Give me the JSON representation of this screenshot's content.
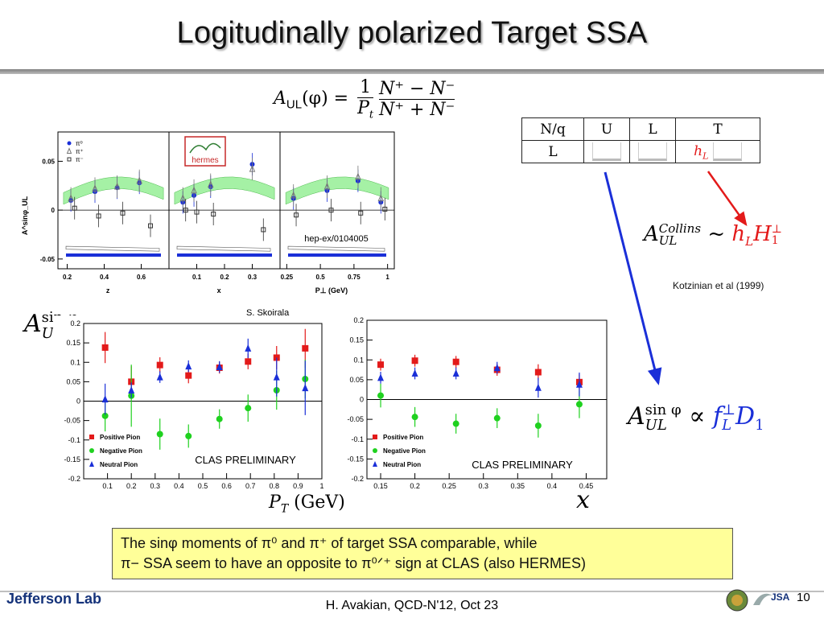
{
  "slide": {
    "title": "Logitudinally polarized Target SSA",
    "page_number": "10",
    "footer": "H. Avakian, QCD-N'12,  Oct 23",
    "logo_text": "Jefferson Lab",
    "logo2_text": "JSA"
  },
  "formula_main": {
    "lhs": "A",
    "lhs_sub": "UL",
    "lhs_arg": "(φ) =",
    "coef_num": "1",
    "coef_den": "P",
    "coef_den_sub": "t",
    "num": "N⁺ − N⁻",
    "den": "N⁺ + N⁻"
  },
  "matrix": {
    "headers": [
      "N/q",
      "U",
      "L",
      "T"
    ],
    "row_label": "L",
    "hl": "h",
    "hl_sub": "L"
  },
  "collins": {
    "lhs": "A",
    "sup": "Collins",
    "sub": "UL",
    "rel": "~",
    "rhs": "h",
    "rhs_sub": "L",
    "rhs2": "H",
    "rhs2_sup": "⊥",
    "rhs2_sub": "1"
  },
  "citation": "Kotzinian et al (1999)",
  "fl_formula": {
    "lhs": "A",
    "sup": "sin φ",
    "sub": "UL",
    "rel": "∝",
    "f": "f",
    "f_sup": "⊥",
    "f_sub": "L",
    "d": "D",
    "d_sub": "1"
  },
  "left_ylabel": {
    "base": "A",
    "sup": "sin φ",
    "sub": "UL"
  },
  "pt_axis_label": {
    "p": "P",
    "p_sub": "T",
    "unit": "(GeV)"
  },
  "x_axis_label": "x",
  "skoirala": "S. Skoirala",
  "note": {
    "line1": "The sinφ moments of  π⁰ and π⁺ of  target SSA comparable, while",
    "line2": "π− SSA seem to have an opposite to π⁰ᐟ⁺ sign at CLAS (also HERMES)"
  },
  "colors": {
    "positive": "#e31a1a",
    "negative": "#1fd11f",
    "neutral": "#1a2fd8",
    "band": "#9cf09c",
    "arrow_blue": "#1a2fd8",
    "arrow_red": "#e31a1a",
    "note_bg": "#ffff99"
  },
  "chart_data": [
    {
      "type": "scatter",
      "id": "hermes",
      "annotation": "hep-ex/0104005",
      "logo": "hermes",
      "ylabel": "A^sinφ_UL",
      "ylim": [
        -0.06,
        0.08
      ],
      "yticks": [
        "0.05",
        "0",
        "-0.05"
      ],
      "legend": [
        "π⁰",
        "π⁺",
        "π⁻"
      ],
      "panels": [
        {
          "xlabel": "z",
          "xlim": [
            0.15,
            0.75
          ],
          "xticks": [
            "0.2",
            "0.4",
            "0.6"
          ],
          "series": [
            {
              "name": "π⁰",
              "x": [
                0.22,
                0.35,
                0.47,
                0.59
              ],
              "y": [
                0.01,
                0.019,
                0.023,
                0.028
              ]
            },
            {
              "name": "π⁺",
              "x": [
                0.22,
                0.35,
                0.47,
                0.59
              ],
              "y": [
                0.012,
                0.022,
                0.024,
                0.03
              ]
            },
            {
              "name": "π⁻",
              "x": [
                0.24,
                0.37,
                0.5,
                0.65
              ],
              "y": [
                0.002,
                -0.006,
                -0.003,
                -0.016
              ]
            }
          ]
        },
        {
          "xlabel": "x",
          "xlim": [
            0.0,
            0.4
          ],
          "xticks": [
            "0.1",
            "0.2",
            "0.3"
          ],
          "series": [
            {
              "name": "π⁰",
              "x": [
                0.05,
                0.09,
                0.15,
                0.3
              ],
              "y": [
                0.008,
                0.015,
                0.024,
                0.047
              ]
            },
            {
              "name": "π⁺",
              "x": [
                0.05,
                0.09,
                0.15,
                0.3
              ],
              "y": [
                0.012,
                0.02,
                0.026,
                0.042
              ]
            },
            {
              "name": "π⁻",
              "x": [
                0.06,
                0.1,
                0.16,
                0.34
              ],
              "y": [
                0.0,
                -0.002,
                -0.004,
                -0.02
              ]
            }
          ]
        },
        {
          "xlabel": "P⊥ (GeV)",
          "xlim": [
            0.2,
            1.05
          ],
          "xticks": [
            "0.25",
            "0.5",
            "0.75",
            "1"
          ],
          "series": [
            {
              "name": "π⁰",
              "x": [
                0.3,
                0.55,
                0.78,
                0.95
              ],
              "y": [
                0.012,
                0.02,
                0.03,
                0.008
              ]
            },
            {
              "name": "π⁺",
              "x": [
                0.3,
                0.55,
                0.78,
                0.95
              ],
              "y": [
                0.015,
                0.024,
                0.034,
                0.012
              ]
            },
            {
              "name": "π⁻",
              "x": [
                0.32,
                0.58,
                0.8,
                0.98
              ],
              "y": [
                -0.005,
                0.0,
                -0.003,
                0.001
              ]
            }
          ]
        }
      ]
    },
    {
      "type": "scatter",
      "id": "clas-pt",
      "xlim": [
        0,
        1
      ],
      "ylim": [
        -0.2,
        0.2
      ],
      "xticks": [
        "0.1",
        "0.2",
        "0.3",
        "0.4",
        "0.5",
        "0.6",
        "0.7",
        "0.8",
        "0.9",
        "1"
      ],
      "yticks": [
        "0.2",
        "0.15",
        "0.1",
        "0.05",
        "0",
        "-0.05",
        "-0.1",
        "-0.15",
        "-0.2"
      ],
      "annotation": "CLAS PRELIMINARY",
      "legend": [
        "Positive Pion",
        "Negative Pion",
        "Neutral Pion"
      ],
      "series": [
        {
          "name": "Positive Pion",
          "x": [
            0.09,
            0.2,
            0.32,
            0.44,
            0.57,
            0.69,
            0.81,
            0.93
          ],
          "y": [
            0.138,
            0.05,
            0.093,
            0.066,
            0.086,
            0.102,
            0.112,
            0.136
          ],
          "err": [
            0.04,
            0.04,
            0.02,
            0.02,
            0.015,
            0.02,
            0.03,
            0.05
          ]
        },
        {
          "name": "Negative Pion",
          "x": [
            0.09,
            0.2,
            0.32,
            0.44,
            0.57,
            0.69,
            0.81,
            0.93
          ],
          "y": [
            -0.038,
            0.014,
            -0.085,
            -0.09,
            -0.046,
            -0.018,
            0.028,
            0.057
          ],
          "err": [
            0.04,
            0.08,
            0.04,
            0.03,
            0.025,
            0.035,
            0.05,
            0.05
          ]
        },
        {
          "name": "Neutral Pion",
          "x": [
            0.09,
            0.2,
            0.32,
            0.44,
            0.57,
            0.69,
            0.81,
            0.93
          ],
          "y": [
            0.005,
            0.028,
            0.062,
            0.09,
            0.088,
            0.136,
            0.062,
            0.034
          ],
          "err": [
            0.04,
            0.02,
            0.015,
            0.015,
            0.015,
            0.025,
            0.05,
            0.07
          ]
        }
      ]
    },
    {
      "type": "scatter",
      "id": "clas-x",
      "xlim": [
        0.13,
        0.48
      ],
      "ylim": [
        -0.2,
        0.2
      ],
      "xticks": [
        "0.15",
        "0.2",
        "0.25",
        "0.3",
        "0.35",
        "0.4",
        "0.45"
      ],
      "yticks": [
        "0.2",
        "0.15",
        "0.1",
        "0.05",
        "0",
        "-0.05",
        "-0.1",
        "-0.15",
        "-0.2"
      ],
      "annotation": "CLAS PRELIMINARY",
      "legend": [
        "Positive Pion",
        "Negative Pion",
        "Neutral Pion"
      ],
      "series": [
        {
          "name": "Positive Pion",
          "x": [
            0.15,
            0.2,
            0.26,
            0.32,
            0.38,
            0.44
          ],
          "y": [
            0.088,
            0.098,
            0.095,
            0.075,
            0.069,
            0.044
          ],
          "err": [
            0.015,
            0.015,
            0.015,
            0.015,
            0.02,
            0.02
          ]
        },
        {
          "name": "Negative Pion",
          "x": [
            0.15,
            0.2,
            0.26,
            0.32,
            0.38,
            0.44
          ],
          "y": [
            0.01,
            -0.044,
            -0.061,
            -0.047,
            -0.066,
            -0.012
          ],
          "err": [
            0.03,
            0.025,
            0.025,
            0.025,
            0.03,
            0.035
          ]
        },
        {
          "name": "Neutral Pion",
          "x": [
            0.15,
            0.2,
            0.26,
            0.32,
            0.38,
            0.44
          ],
          "y": [
            0.055,
            0.066,
            0.066,
            0.08,
            0.03,
            0.038
          ],
          "err": [
            0.015,
            0.015,
            0.015,
            0.015,
            0.025,
            0.03
          ]
        }
      ]
    }
  ]
}
